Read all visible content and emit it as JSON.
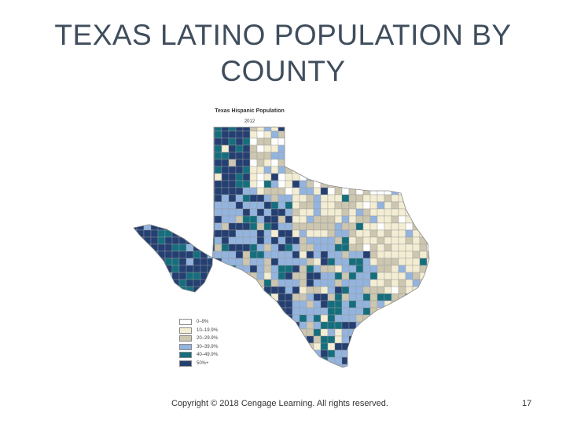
{
  "slide": {
    "title_line1": "TEXAS LATINO POPULATION BY",
    "title_line2": "COUNTY",
    "footer": "Copyright © 2018 Cengage Learning. All rights reserved.",
    "page_number": "17"
  },
  "map": {
    "title": "Texas Hispanic Population",
    "year": "2012",
    "border_color": "#9a9a9a",
    "legend": [
      {
        "label": "0–9%",
        "color": "#ffffff"
      },
      {
        "label": "10–19.9%",
        "color": "#f3edd3"
      },
      {
        "label": "20–29.9%",
        "color": "#cdc6b0"
      },
      {
        "label": "30–39.9%",
        "color": "#93b4de"
      },
      {
        "label": "40–49.9%",
        "color": "#156e7d"
      },
      {
        "label": "50%+",
        "color": "#243f72"
      }
    ]
  }
}
